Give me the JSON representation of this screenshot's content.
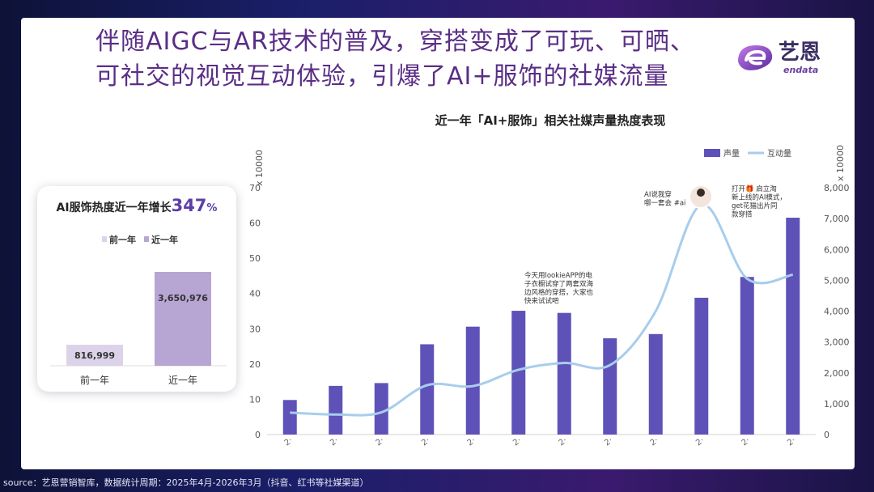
{
  "headline": {
    "line1": "伴随AIGC与AR技术的普及，穿搭变成了可玩、可晒、",
    "line2": "可社交的视觉互动体验，引爆了AI+服饰的社媒流量"
  },
  "logo": {
    "cn": "艺恩",
    "en": "endata"
  },
  "kpi": {
    "title": "AI服饰热度近一年增长",
    "growth": "347",
    "growth_unit": "%",
    "legend": [
      "前一年",
      "近一年"
    ],
    "categories": [
      "前一年",
      "近一年"
    ],
    "values": [
      816999,
      3650976
    ],
    "value_labels": [
      "816,999",
      "3,650,976"
    ],
    "colors": [
      "#dcd3ea",
      "#b7a5d4"
    ]
  },
  "chart_data": {
    "type": "bar",
    "title": "近一年「AI+服饰」相关社媒声量热度表现",
    "categories": [
      "2·",
      "2·",
      "2·",
      "2·",
      "2·",
      "2·",
      "2·",
      "2·",
      "2·",
      "2·",
      "2·",
      "2·"
    ],
    "series": [
      {
        "name": "声量",
        "type": "bar",
        "axis": "left",
        "color": "#5e52b8",
        "values": [
          9.8,
          13.8,
          14.6,
          25.6,
          30.6,
          35.1,
          34.5,
          27.3,
          28.5,
          38.8,
          44.7,
          61.5
        ]
      },
      {
        "name": "互动量",
        "type": "line",
        "axis": "right",
        "color": "#a8cdec",
        "values": [
          710,
          650,
          720,
          1600,
          1570,
          2100,
          2320,
          2250,
          4000,
          7450,
          5050,
          5180
        ]
      }
    ],
    "y_left": {
      "label": "x 10000",
      "ylim": [
        0,
        70
      ],
      "ticks": [
        0,
        10,
        20,
        30,
        40,
        50,
        60,
        70
      ]
    },
    "y_right": {
      "label": "x 10000",
      "ylim": [
        0,
        8000
      ],
      "ticks": [
        "0",
        "1,000",
        "2,000",
        "3,000",
        "4,000",
        "5,000",
        "6,000",
        "7,000",
        "8,000"
      ]
    },
    "legend_position": "top-right",
    "annotations": [
      {
        "lines": [
          "今天用lookieAPP的电",
          "子衣橱试穿了两套双海",
          "边风格的穿搭，大家也",
          "快来试试吧"
        ]
      },
      {
        "lines": [
          "AI说我穿",
          "哪一套会 #ai"
        ]
      },
      {
        "lines": [
          "打开🎁 启立淘",
          "新上线的AI模式，",
          "get花猫出片同",
          "款穿搭"
        ]
      }
    ]
  },
  "source": "source：艺恩营销智库，数据统计周期：2025年4月-2026年3月（抖音、红书等社媒渠道）"
}
